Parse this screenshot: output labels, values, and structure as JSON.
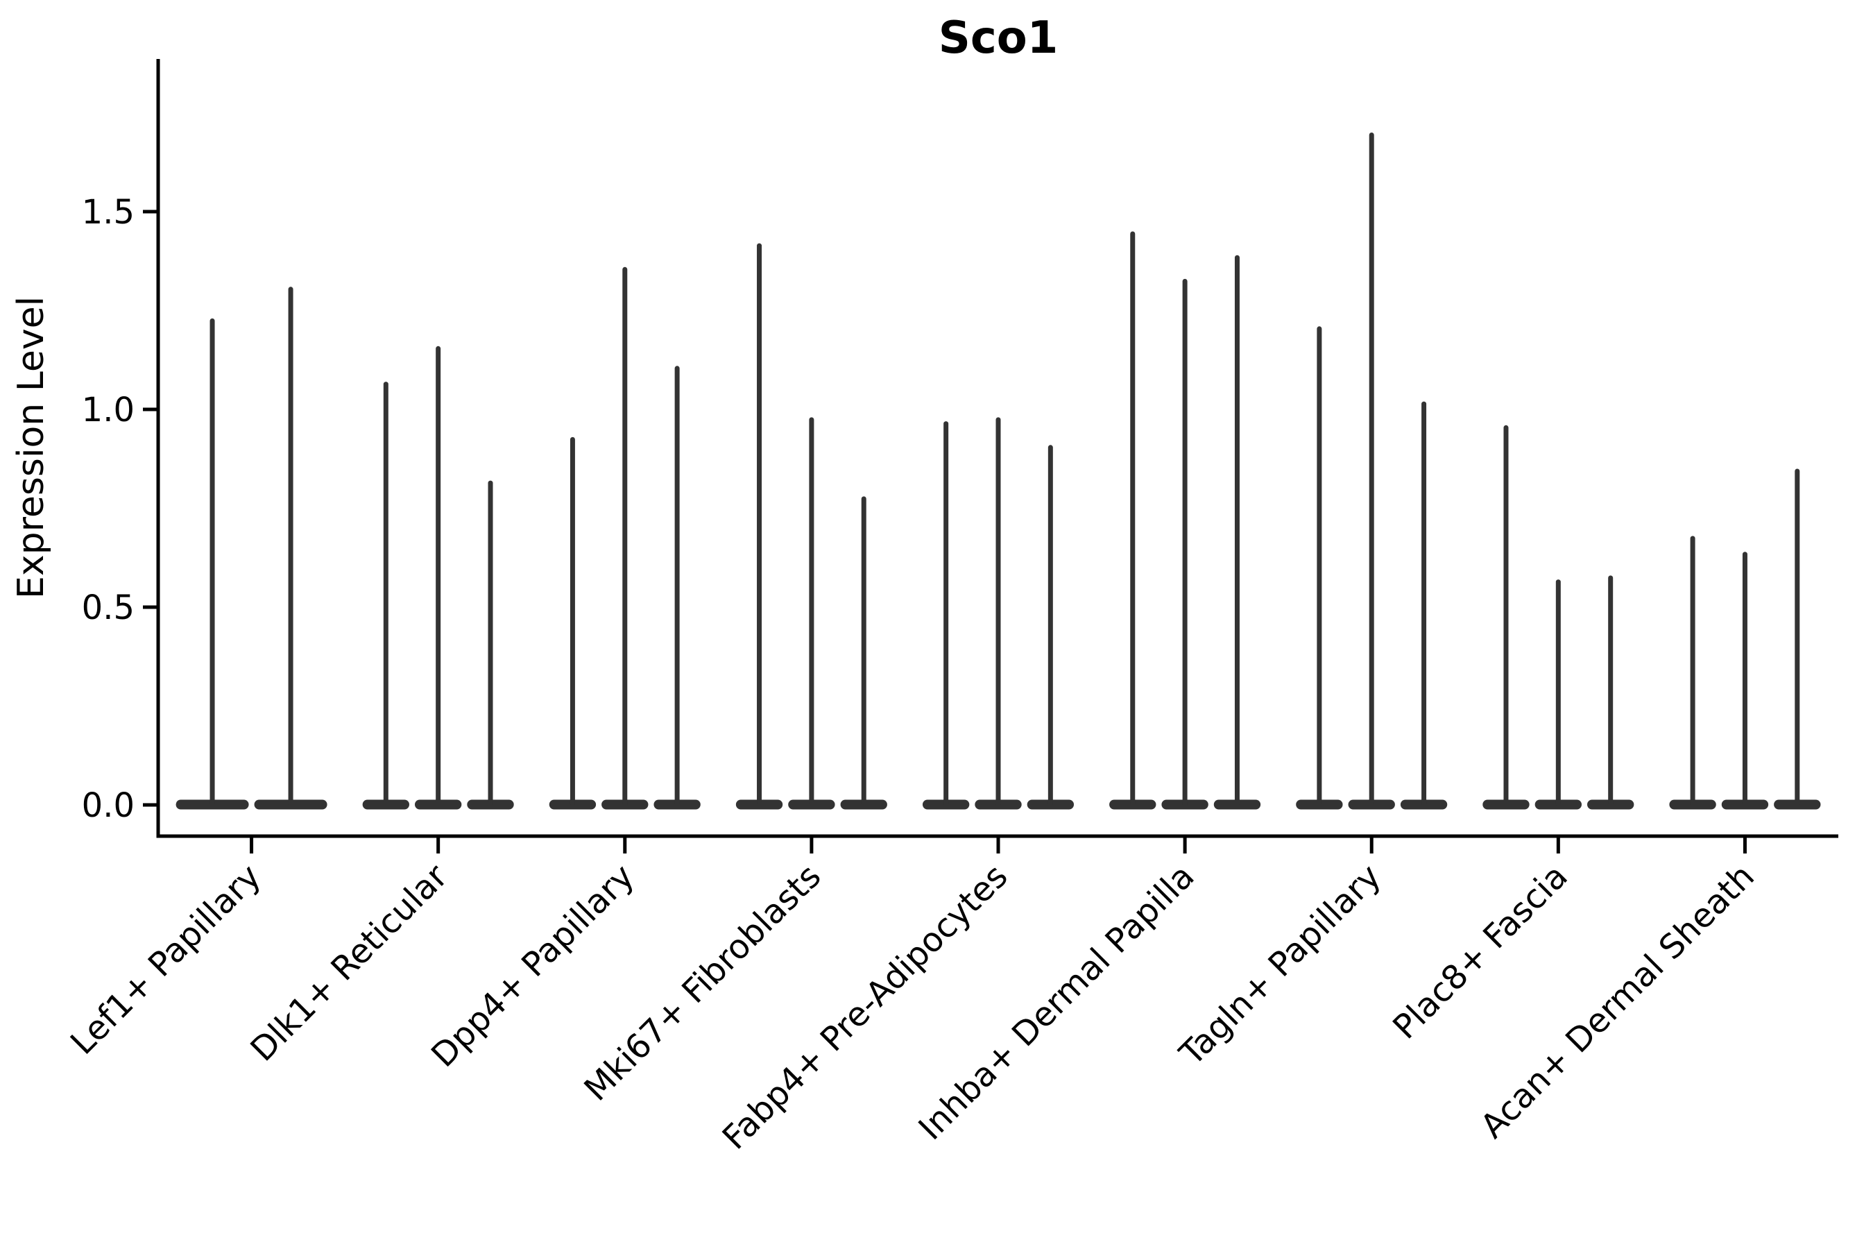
{
  "chart_data": {
    "type": "violin",
    "title": "Sco1",
    "xlabel": "",
    "ylabel": "Expression Level",
    "ytick_labels": [
      "0.0",
      "0.5",
      "1.0",
      "1.5"
    ],
    "ytick_values": [
      0.0,
      0.5,
      1.0,
      1.5
    ],
    "ylim": [
      -0.08,
      1.88
    ],
    "grid": false,
    "legend": "none",
    "violin_style": "needle-shaped violins: density mass flattened at 0 with a thin tail rising to the listed maximum expression value",
    "colors": {
      "violin_fill": "#333333",
      "axis": "#000000",
      "background": "#ffffff"
    },
    "groups": [
      {
        "label": "Lef1+ Papillary",
        "spike_heights": [
          1.23,
          1.31
        ]
      },
      {
        "label": "Dlk1+ Reticular",
        "spike_heights": [
          1.07,
          1.16,
          0.82
        ]
      },
      {
        "label": "Dpp4+ Papillary",
        "spike_heights": [
          0.93,
          1.36,
          1.11
        ]
      },
      {
        "label": "Mki67+ Fibroblasts",
        "spike_heights": [
          1.42,
          0.98,
          0.78
        ]
      },
      {
        "label": "Fabp4+ Pre-Adipocytes",
        "spike_heights": [
          0.97,
          0.98,
          0.91
        ]
      },
      {
        "label": "Inhba+ Dermal Papilla",
        "spike_heights": [
          1.45,
          1.33,
          1.39
        ]
      },
      {
        "label": "Tagln+ Papillary",
        "spike_heights": [
          1.21,
          1.7,
          1.02
        ]
      },
      {
        "label": "Plac8+ Fascia",
        "spike_heights": [
          0.96,
          0.57,
          0.58
        ]
      },
      {
        "label": "Acan+ Dermal Sheath",
        "spike_heights": [
          0.68,
          0.64,
          0.85
        ]
      }
    ]
  }
}
